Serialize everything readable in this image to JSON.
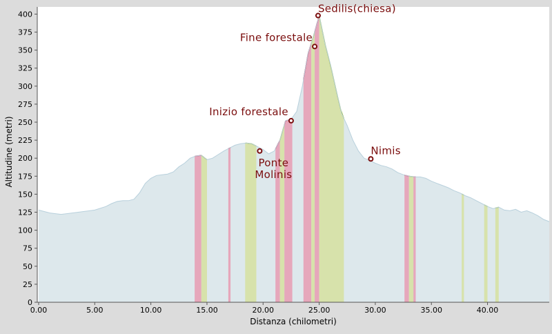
{
  "chart_data": {
    "type": "area",
    "title": "",
    "xlabel": "Distanza (chilometri)",
    "ylabel": "Altitudine (metri)",
    "xlim": [
      0,
      45.5
    ],
    "ylim": [
      0,
      410
    ],
    "x_ticks": [
      0,
      5,
      10,
      15,
      20,
      25,
      30,
      35,
      40
    ],
    "x_tick_labels": [
      "0.00",
      "5.00",
      "10.00",
      "15.00",
      "20.00",
      "25.00",
      "30.00",
      "35.00",
      "40.00"
    ],
    "y_ticks": [
      0,
      25,
      50,
      75,
      100,
      125,
      150,
      175,
      200,
      225,
      250,
      275,
      300,
      325,
      350,
      375,
      400
    ],
    "y_tick_labels": [
      "0",
      "25",
      "50",
      "75",
      "100",
      "125",
      "150",
      "175",
      "200",
      "225",
      "250",
      "275",
      "300",
      "325",
      "350",
      "375",
      "400"
    ],
    "grid": false,
    "colors": {
      "background": "#dcdcdc",
      "plot_area": "#ffffff",
      "profile_fill": "#dde8ec",
      "profile_line": "#b8d0dc",
      "ascent": "#e6a3b8",
      "ascent_line": "#c8103c",
      "descent": "#d6e2a8",
      "descent_line": "#90b428",
      "annotation": "#7a0d0d"
    },
    "series": [
      {
        "x": [
          0,
          1,
          2,
          3,
          4,
          5,
          6,
          6.5,
          7,
          7.5,
          8,
          8.5,
          9,
          9.5,
          10,
          10.5,
          11,
          11.5,
          12,
          12.5,
          13,
          13.5,
          14,
          14.5,
          15,
          15.5,
          16,
          16.5,
          17,
          17.5,
          18,
          18.5,
          19,
          19.5,
          20,
          20.5,
          21,
          21.5,
          22,
          22.5,
          23,
          23.5,
          24,
          24.5,
          25,
          25.5,
          26,
          26.5,
          27,
          27.5,
          28,
          28.5,
          29,
          29.5,
          30,
          30.5,
          31,
          31.5,
          32,
          32.5,
          33,
          33.5,
          34,
          34.5,
          35,
          35.5,
          36,
          36.5,
          37,
          37.5,
          38,
          38.5,
          39,
          39.5,
          40,
          40.5,
          41,
          41.5,
          42,
          42.5,
          43,
          43.5,
          44,
          44.5,
          45,
          45.5
        ],
        "y": [
          128,
          124,
          122,
          124,
          126,
          128,
          133,
          137,
          140,
          141,
          141,
          143,
          152,
          165,
          172,
          176,
          177,
          178,
          181,
          188,
          193,
          200,
          203,
          204,
          198,
          200,
          205,
          210,
          214,
          218,
          220,
          221,
          220,
          216,
          212,
          206,
          210,
          225,
          252,
          254,
          265,
          300,
          345,
          370,
          398,
          360,
          330,
          295,
          262,
          245,
          225,
          210,
          200,
          197,
          193,
          190,
          188,
          185,
          180,
          177,
          175,
          174,
          174,
          172,
          168,
          165,
          162,
          159,
          155,
          152,
          148,
          145,
          141,
          137,
          133,
          130,
          132,
          128,
          127,
          129,
          125,
          127,
          124,
          120,
          115,
          112
        ]
      }
    ],
    "climb_bands": [
      {
        "from": 13.9,
        "to": 14.5,
        "type": "ascent"
      },
      {
        "from": 14.5,
        "to": 15.0,
        "type": "descent"
      },
      {
        "from": 16.9,
        "to": 17.1,
        "type": "ascent"
      },
      {
        "from": 18.4,
        "to": 19.4,
        "type": "descent"
      },
      {
        "from": 21.1,
        "to": 21.5,
        "type": "ascent"
      },
      {
        "from": 21.5,
        "to": 21.9,
        "type": "descent"
      },
      {
        "from": 21.9,
        "to": 22.6,
        "type": "ascent"
      },
      {
        "from": 23.6,
        "to": 24.3,
        "type": "ascent"
      },
      {
        "from": 24.3,
        "to": 24.6,
        "type": "descent"
      },
      {
        "from": 24.6,
        "to": 25.0,
        "type": "ascent"
      },
      {
        "from": 25.0,
        "to": 27.2,
        "type": "descent"
      },
      {
        "from": 32.6,
        "to": 33.0,
        "type": "ascent"
      },
      {
        "from": 33.0,
        "to": 33.4,
        "type": "descent"
      },
      {
        "from": 33.4,
        "to": 33.6,
        "type": "ascent"
      },
      {
        "from": 37.7,
        "to": 37.9,
        "type": "descent"
      },
      {
        "from": 39.7,
        "to": 40.0,
        "type": "descent"
      },
      {
        "from": 40.7,
        "to": 41.0,
        "type": "descent"
      }
    ],
    "annotations": [
      {
        "text": "Sedilis(chiesa)",
        "x": 24.9,
        "y": 398
      },
      {
        "text": "Fine forestale",
        "x": 24.6,
        "y": 355
      },
      {
        "text": "Inizio forestale",
        "x": 22.5,
        "y": 252
      },
      {
        "text": "Ponte\nMolinis",
        "x": 19.7,
        "y": 210
      },
      {
        "text": "Nimis",
        "x": 29.6,
        "y": 199
      }
    ]
  }
}
